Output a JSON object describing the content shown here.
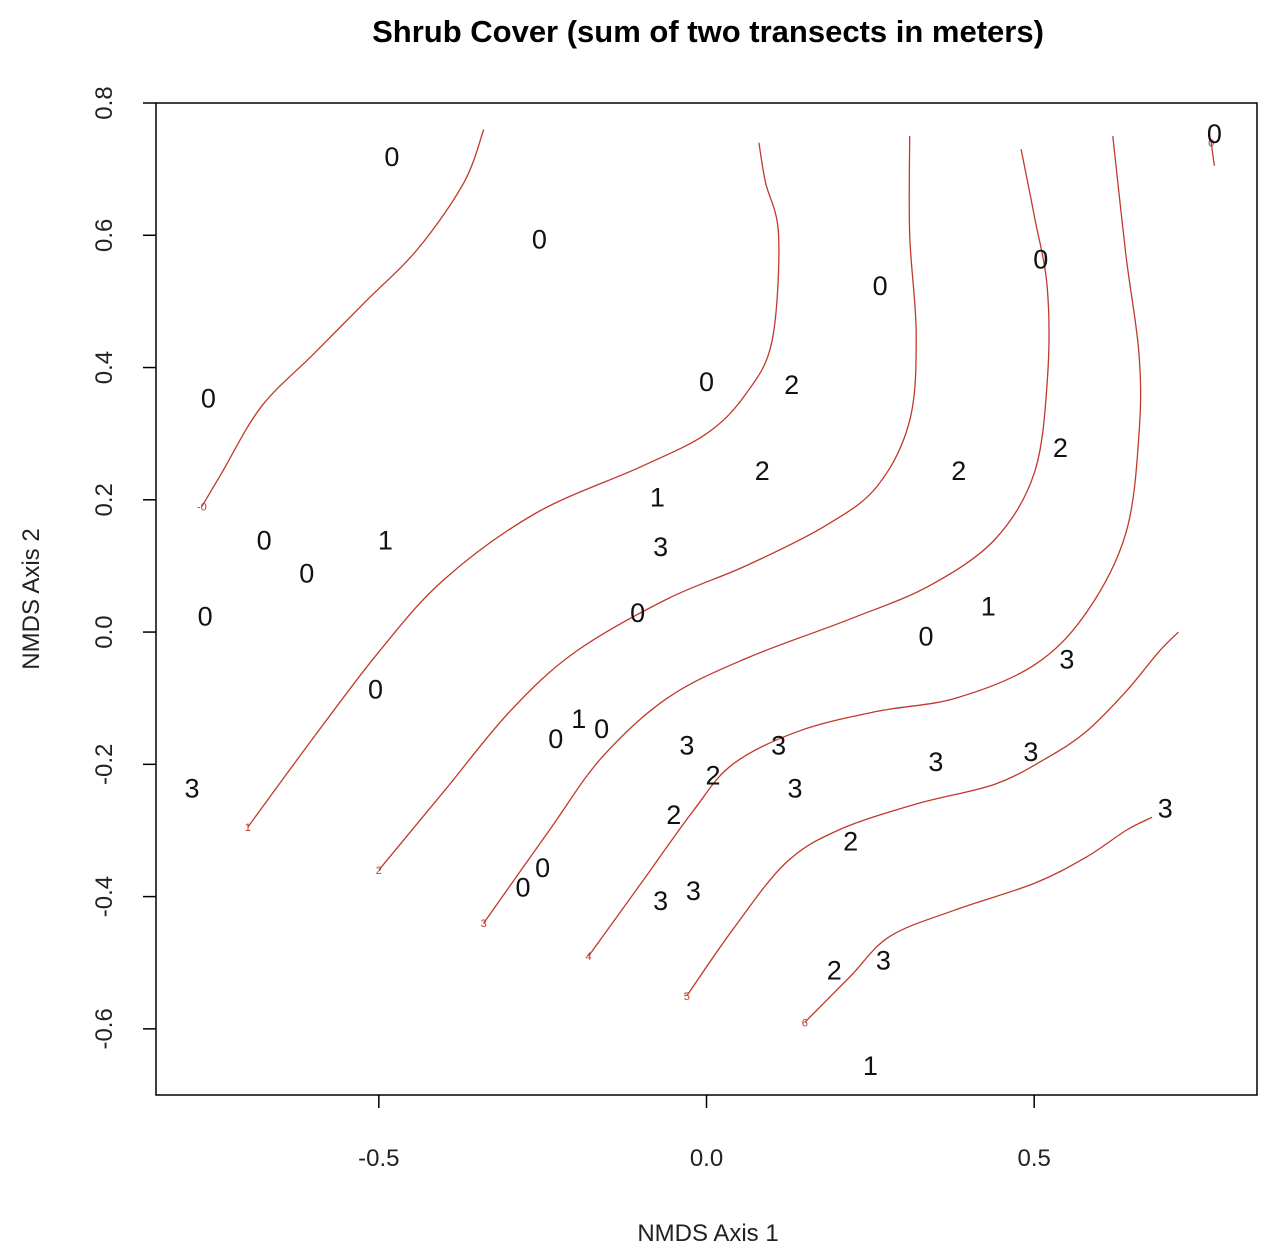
{
  "chart_data": {
    "type": "scatter",
    "title": "Shrub Cover (sum of two transects in meters)",
    "xlabel": "NMDS Axis 1",
    "ylabel": "NMDS Axis 2",
    "xlim": [
      -0.84,
      0.84
    ],
    "ylim": [
      -0.7,
      0.8
    ],
    "xticks": [
      -0.5,
      0.0,
      0.5
    ],
    "xtick_labels": [
      "-0.5",
      "0.0",
      "0.5"
    ],
    "yticks": [
      -0.6,
      -0.4,
      -0.2,
      0.0,
      0.2,
      0.4,
      0.6,
      0.8
    ],
    "ytick_labels": [
      "-0.6",
      "-0.4",
      "-0.2",
      "0.0",
      "0.2",
      "0.4",
      "0.6",
      "0.8"
    ],
    "grid": false,
    "contour_color": "#c0392b",
    "points": [
      {
        "x": -0.48,
        "y": 0.72,
        "label": "0"
      },
      {
        "x": -0.255,
        "y": 0.595,
        "label": "0"
      },
      {
        "x": -0.76,
        "y": 0.355,
        "label": "0"
      },
      {
        "x": -0.675,
        "y": 0.14,
        "label": "0"
      },
      {
        "x": -0.61,
        "y": 0.09,
        "label": "0"
      },
      {
        "x": -0.49,
        "y": 0.14,
        "label": "1"
      },
      {
        "x": -0.765,
        "y": 0.025,
        "label": "0"
      },
      {
        "x": -0.505,
        "y": -0.085,
        "label": "0"
      },
      {
        "x": -0.785,
        "y": -0.235,
        "label": "3"
      },
      {
        "x": 0.265,
        "y": 0.525,
        "label": "0"
      },
      {
        "x": 0.51,
        "y": 0.565,
        "label": "0"
      },
      {
        "x": 0.775,
        "y": 0.755,
        "label": "0"
      },
      {
        "x": 0.0,
        "y": 0.38,
        "label": "0"
      },
      {
        "x": 0.13,
        "y": 0.375,
        "label": "2"
      },
      {
        "x": 0.085,
        "y": 0.245,
        "label": "2"
      },
      {
        "x": 0.385,
        "y": 0.245,
        "label": "2"
      },
      {
        "x": 0.54,
        "y": 0.28,
        "label": "2"
      },
      {
        "x": -0.075,
        "y": 0.205,
        "label": "1"
      },
      {
        "x": -0.07,
        "y": 0.13,
        "label": "3"
      },
      {
        "x": -0.105,
        "y": 0.03,
        "label": "0"
      },
      {
        "x": 0.43,
        "y": 0.04,
        "label": "1"
      },
      {
        "x": 0.335,
        "y": -0.005,
        "label": "0"
      },
      {
        "x": 0.55,
        "y": -0.04,
        "label": "3"
      },
      {
        "x": -0.23,
        "y": -0.16,
        "label": "0"
      },
      {
        "x": -0.195,
        "y": -0.13,
        "label": "1"
      },
      {
        "x": -0.16,
        "y": -0.145,
        "label": "0"
      },
      {
        "x": -0.03,
        "y": -0.17,
        "label": "3"
      },
      {
        "x": 0.11,
        "y": -0.17,
        "label": "3"
      },
      {
        "x": 0.01,
        "y": -0.215,
        "label": "2"
      },
      {
        "x": 0.135,
        "y": -0.235,
        "label": "3"
      },
      {
        "x": 0.35,
        "y": -0.195,
        "label": "3"
      },
      {
        "x": 0.495,
        "y": -0.18,
        "label": "3"
      },
      {
        "x": -0.05,
        "y": -0.275,
        "label": "2"
      },
      {
        "x": 0.7,
        "y": -0.265,
        "label": "3"
      },
      {
        "x": 0.22,
        "y": -0.315,
        "label": "2"
      },
      {
        "x": -0.25,
        "y": -0.355,
        "label": "0"
      },
      {
        "x": -0.28,
        "y": -0.385,
        "label": "0"
      },
      {
        "x": -0.02,
        "y": -0.39,
        "label": "3"
      },
      {
        "x": -0.07,
        "y": -0.405,
        "label": "3"
      },
      {
        "x": 0.195,
        "y": -0.51,
        "label": "2"
      },
      {
        "x": 0.27,
        "y": -0.495,
        "label": "3"
      },
      {
        "x": 0.25,
        "y": -0.655,
        "label": "1"
      }
    ],
    "contours": [
      {
        "level": "0",
        "label_shown": "-0",
        "points": [
          [
            -0.77,
            0.19
          ],
          [
            -0.74,
            0.24
          ],
          [
            -0.68,
            0.34
          ],
          [
            -0.6,
            0.42
          ],
          [
            -0.52,
            0.5
          ],
          [
            -0.44,
            0.58
          ],
          [
            -0.37,
            0.68
          ],
          [
            -0.34,
            0.76
          ]
        ]
      },
      {
        "level": "1",
        "label_shown": "1",
        "points": [
          [
            -0.7,
            -0.295
          ],
          [
            -0.6,
            -0.16
          ],
          [
            -0.5,
            -0.03
          ],
          [
            -0.4,
            0.08
          ],
          [
            -0.26,
            0.18
          ],
          [
            -0.1,
            0.25
          ],
          [
            0.0,
            0.3
          ],
          [
            0.06,
            0.36
          ],
          [
            0.1,
            0.44
          ],
          [
            0.11,
            0.6
          ],
          [
            0.09,
            0.68
          ],
          [
            0.08,
            0.74
          ]
        ]
      },
      {
        "level": "2",
        "label_shown": "2",
        "points": [
          [
            -0.5,
            -0.36
          ],
          [
            -0.4,
            -0.24
          ],
          [
            -0.3,
            -0.12
          ],
          [
            -0.2,
            -0.03
          ],
          [
            -0.06,
            0.05
          ],
          [
            0.06,
            0.1
          ],
          [
            0.18,
            0.16
          ],
          [
            0.26,
            0.22
          ],
          [
            0.31,
            0.32
          ],
          [
            0.32,
            0.45
          ],
          [
            0.31,
            0.6
          ],
          [
            0.31,
            0.75
          ]
        ]
      },
      {
        "level": "3",
        "label_shown": "3",
        "points": [
          [
            -0.34,
            -0.44
          ],
          [
            -0.24,
            -0.3
          ],
          [
            -0.16,
            -0.19
          ],
          [
            -0.06,
            -0.1
          ],
          [
            0.06,
            -0.04
          ],
          [
            0.22,
            0.02
          ],
          [
            0.34,
            0.07
          ],
          [
            0.44,
            0.14
          ],
          [
            0.5,
            0.24
          ],
          [
            0.52,
            0.38
          ],
          [
            0.52,
            0.52
          ],
          [
            0.5,
            0.63
          ],
          [
            0.48,
            0.73
          ]
        ]
      },
      {
        "level": "4",
        "label_shown": "4",
        "points": [
          [
            -0.18,
            -0.49
          ],
          [
            -0.1,
            -0.38
          ],
          [
            -0.02,
            -0.27
          ],
          [
            0.04,
            -0.2
          ],
          [
            0.14,
            -0.15
          ],
          [
            0.26,
            -0.12
          ],
          [
            0.38,
            -0.1
          ],
          [
            0.5,
            -0.05
          ],
          [
            0.58,
            0.03
          ],
          [
            0.64,
            0.15
          ],
          [
            0.66,
            0.3
          ],
          [
            0.66,
            0.42
          ],
          [
            0.64,
            0.57
          ],
          [
            0.62,
            0.75
          ]
        ]
      },
      {
        "level": "5",
        "label_shown": "5",
        "points": [
          [
            -0.03,
            -0.55
          ],
          [
            0.04,
            -0.45
          ],
          [
            0.12,
            -0.35
          ],
          [
            0.2,
            -0.3
          ],
          [
            0.32,
            -0.26
          ],
          [
            0.44,
            -0.23
          ],
          [
            0.52,
            -0.19
          ],
          [
            0.58,
            -0.15
          ],
          [
            0.64,
            -0.09
          ],
          [
            0.69,
            -0.03
          ],
          [
            0.72,
            0.0
          ]
        ]
      },
      {
        "level": "6",
        "label_shown": "6",
        "points": [
          [
            0.15,
            -0.59
          ],
          [
            0.22,
            -0.52
          ],
          [
            0.28,
            -0.46
          ],
          [
            0.38,
            -0.42
          ],
          [
            0.5,
            -0.38
          ],
          [
            0.58,
            -0.34
          ],
          [
            0.64,
            -0.3
          ],
          [
            0.68,
            -0.28
          ]
        ]
      },
      {
        "level": "-",
        "label_shown": "0",
        "points": [
          [
            0.77,
            0.74
          ],
          [
            0.775,
            0.705
          ]
        ]
      }
    ]
  }
}
